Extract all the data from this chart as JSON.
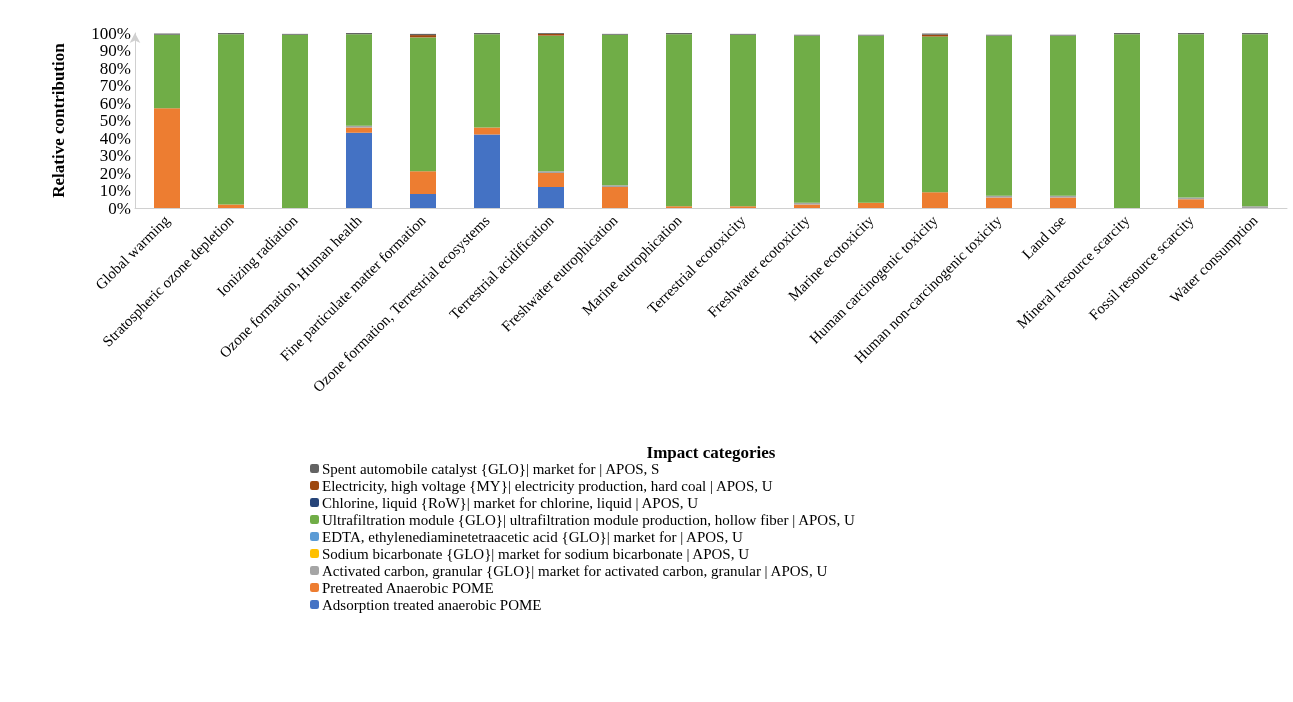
{
  "chart_data": {
    "type": "bar",
    "stacked": true,
    "xlabel": "Impact categories",
    "ylabel": "Relative contribution",
    "categories": [
      "Global warming",
      "Stratospheric ozone depletion",
      "Ionizing radiation",
      "Ozone formation, Human health",
      "Fine particulate matter formation",
      "Ozone formation, Terrestrial ecosystems",
      "Terrestrial acidification",
      "Freshwater eutrophication",
      "Marine eutrophication",
      "Terrestrial ecotoxicity",
      "Freshwater ecotoxicity",
      "Marine ecotoxicity",
      "Human carcinogenic toxicity",
      "Human non-carcinogenic toxicity",
      "Land use",
      "Mineral resource scarcity",
      "Fossil resource scarcity",
      "Water consumption"
    ],
    "series": [
      {
        "name": "Adsorption treated anaerobic POME",
        "color": "#4472c4",
        "values": [
          0,
          0,
          0,
          43,
          8,
          42,
          12,
          0,
          0,
          0,
          0,
          0,
          0,
          0,
          0,
          0,
          0,
          0
        ]
      },
      {
        "name": "Pretreated Anaerobic POME",
        "color": "#ed7d31",
        "values": [
          57,
          2,
          0,
          3,
          13,
          4,
          8,
          12,
          1,
          1,
          2,
          3,
          9,
          6,
          6,
          0,
          5,
          0
        ]
      },
      {
        "name": "Activated carbon, granular {GLO}| market for activated carbon, granular | APOS, U",
        "color": "#a5a5a5",
        "values": [
          null,
          0,
          0,
          1,
          null,
          0,
          1,
          1,
          0,
          0,
          1,
          0,
          0,
          1,
          1,
          0,
          1,
          1
        ]
      },
      {
        "name": "Sodium bicarbonate {GLO}| market for sodium bicarbonate | APOS, U",
        "color": "#ffc000",
        "values": [
          0,
          0,
          0,
          0,
          0,
          0,
          0,
          0,
          0,
          0,
          0,
          0,
          0,
          0,
          0,
          0,
          0,
          0
        ]
      },
      {
        "name": "EDTA, ethylenediaminetetraacetic acid {GLO}| market for | APOS, U",
        "color": "#5b9bd5",
        "values": [
          0,
          0,
          0,
          0,
          0,
          0,
          0,
          0,
          0,
          0,
          0,
          0,
          0,
          0,
          0,
          0,
          0,
          0
        ]
      },
      {
        "name": "Ultrafiltration module {GLO}| ultrafiltration module production, hollow fiber | APOS, U",
        "color": "#70ad47",
        "values": [
          42,
          97.3,
          99,
          52.3,
          76.5,
          53.3,
          77.5,
          86,
          98.3,
          98,
          95.5,
          95.5,
          89,
          91.5,
          91.5,
          99.3,
          93.3,
          98.3
        ]
      },
      {
        "name": "Chlorine, liquid {RoW}| market for chlorine, liquid | APOS, U",
        "color": "#264478",
        "values": [
          0,
          0,
          0,
          0,
          0,
          0,
          0,
          0,
          0,
          0,
          0,
          0,
          0,
          0,
          0,
          0,
          0,
          0
        ]
      },
      {
        "name": "Electricity, high voltage {MY}| electricity production, hard coal | APOS, U",
        "color": "#9e480e",
        "values": [
          0,
          0,
          0,
          0,
          1.3,
          0,
          1,
          0,
          0,
          0,
          0,
          0,
          1,
          0,
          0,
          0,
          0,
          0
        ]
      },
      {
        "name": "Spent automobile catalyst {GLO}| market for | APOS, S",
        "color": "#636363",
        "values": [
          0.7,
          0.7,
          0.5,
          0.7,
          0.7,
          0.7,
          0.5,
          0.5,
          0.7,
          0.5,
          0.5,
          0.5,
          0.7,
          0.5,
          0.5,
          0.7,
          0.7,
          0.7
        ]
      }
    ],
    "ylim": [
      0,
      100
    ],
    "yticks": [
      {
        "value": 0,
        "label": "0%"
      },
      {
        "value": 10,
        "label": "10%"
      },
      {
        "value": 20,
        "label": "20%"
      },
      {
        "value": 30,
        "label": "30%"
      },
      {
        "value": 40,
        "label": "40%"
      },
      {
        "value": 50,
        "label": "50%"
      },
      {
        "value": 60,
        "label": "60%"
      },
      {
        "value": 70,
        "label": "70%"
      },
      {
        "value": 80,
        "label": "80%"
      },
      {
        "value": 90,
        "label": "90%"
      },
      {
        "value": 100,
        "label": "100%"
      }
    ],
    "grid": false,
    "legend": "bottom"
  }
}
